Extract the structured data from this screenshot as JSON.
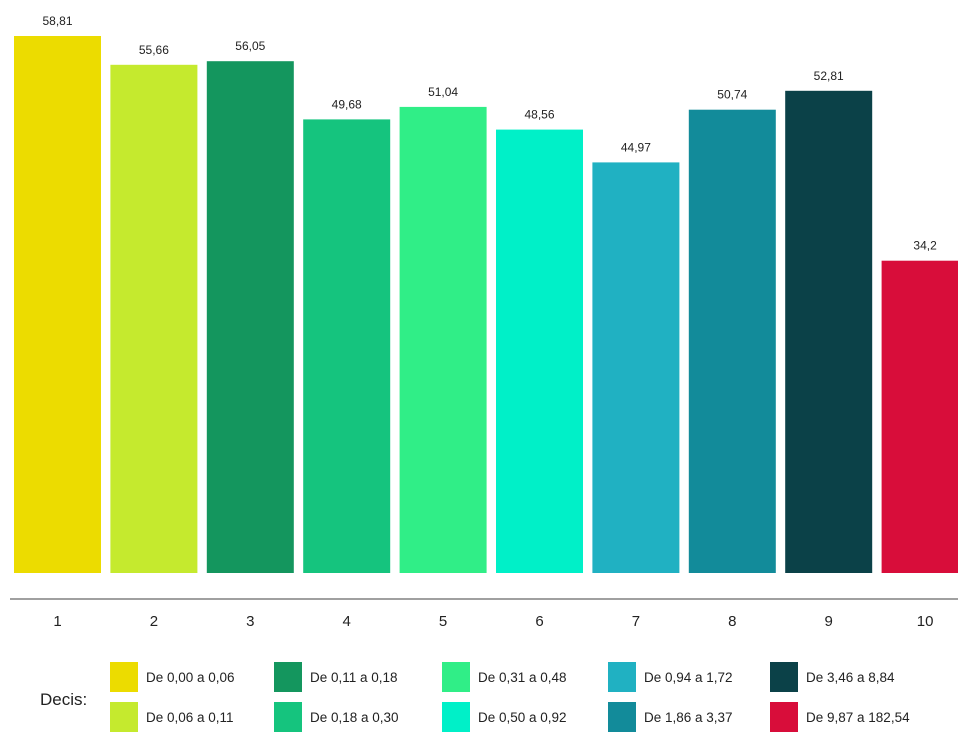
{
  "chart_data": {
    "type": "bar",
    "categories": [
      "1",
      "2",
      "3",
      "4",
      "5",
      "6",
      "7",
      "8",
      "9",
      "10"
    ],
    "values": [
      58.81,
      55.66,
      56.05,
      49.68,
      51.04,
      48.56,
      44.97,
      50.74,
      52.81,
      34.2
    ],
    "value_labels": [
      "58,81",
      "55,66",
      "56,05",
      "49,68",
      "51,04",
      "48,56",
      "44,97",
      "50,74",
      "52,81",
      "34,2"
    ],
    "colors": [
      "#ecdc00",
      "#c5ea2e",
      "#14965e",
      "#15c47e",
      "#30ee87",
      "#00f0c8",
      "#20b1c2",
      "#128b9a",
      "#0b4148",
      "#d80d3a"
    ],
    "ylim": [
      0,
      60
    ],
    "grid": false,
    "title": "",
    "xlabel": "",
    "ylabel": "",
    "legend": {
      "title": "Decis:",
      "position": "bottom",
      "items": [
        {
          "label": "De 0,00 a 0,06",
          "color": "#ecdc00"
        },
        {
          "label": "De 0,06 a 0,11",
          "color": "#c5ea2e"
        },
        {
          "label": "De 0,11 a 0,18",
          "color": "#14965e"
        },
        {
          "label": "De 0,18 a 0,30",
          "color": "#15c47e"
        },
        {
          "label": "De 0,31 a 0,48",
          "color": "#30ee87"
        },
        {
          "label": "De 0,50 a 0,92",
          "color": "#00f0c8"
        },
        {
          "label": "De 0,94 a 1,72",
          "color": "#20b1c2"
        },
        {
          "label": "De 1,86 a 3,37",
          "color": "#128b9a"
        },
        {
          "label": "De 3,46 a 8,84",
          "color": "#0b4148"
        },
        {
          "label": "De 9,87 a 182,54",
          "color": "#d80d3a"
        }
      ]
    }
  }
}
